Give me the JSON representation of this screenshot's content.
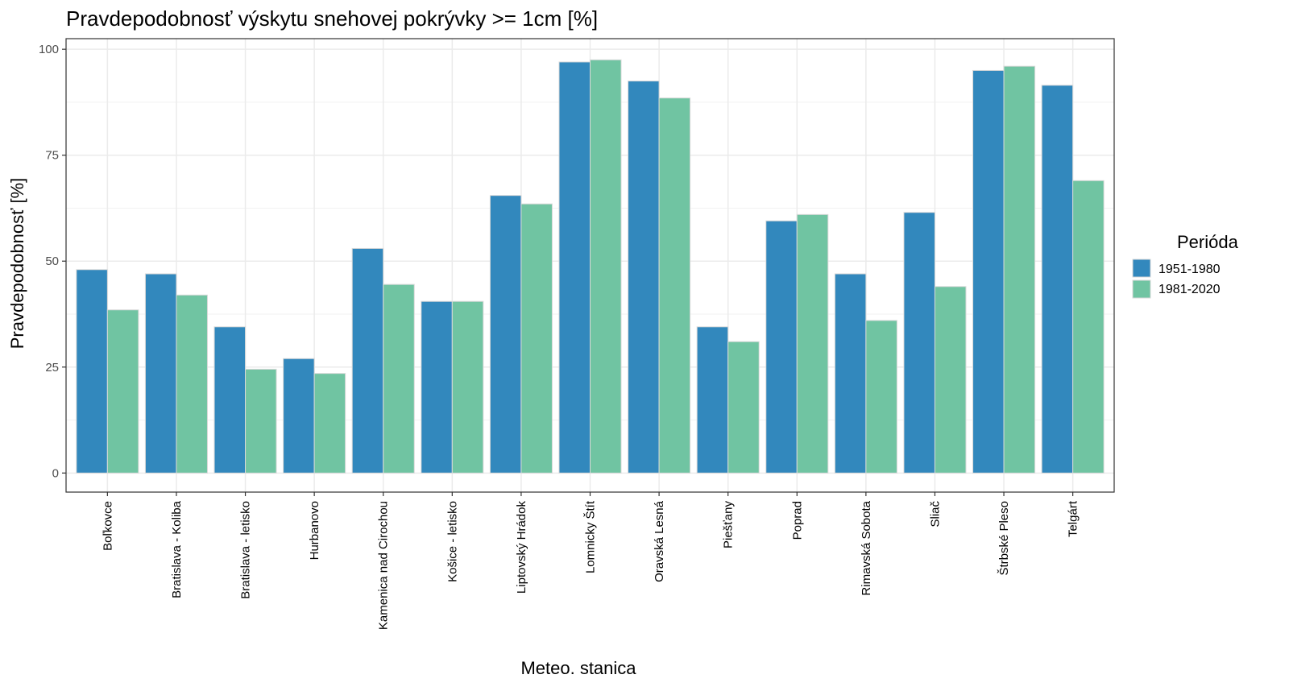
{
  "chart_data": {
    "type": "bar",
    "title": "Pravdepodobnosť výskytu snehovej pokrývky >= 1cm [%]",
    "xlabel": "Meteo. stanica",
    "ylabel": "Pravdepodobnosť [%]",
    "ylim": [
      -4.5,
      102.5
    ],
    "yticks": [
      0,
      25,
      50,
      75,
      100
    ],
    "ytick_labels": [
      "0",
      "25",
      "50",
      "75",
      "100"
    ],
    "grid": true,
    "legend_title": "Perióda",
    "legend_position": "right",
    "categories": [
      "Boľkovce",
      "Bratislava - Koliba",
      "Bratislava - letisko",
      "Hurbanovo",
      "Kamenica nad Cirochou",
      "Košice - letisko",
      "Liptovský Hrádok",
      "Lomnicky Štít",
      "Oravská Lesná",
      "Piešťany",
      "Poprad",
      "Rimavská Sobota",
      "Sliač",
      "Štrbské Pleso",
      "Telgárt"
    ],
    "series": [
      {
        "name": "1951-1980",
        "color": "#3288bd",
        "values": [
          48,
          47,
          34.5,
          27,
          53,
          40.5,
          65.5,
          97,
          92.5,
          34.5,
          59.5,
          47,
          61.5,
          95,
          91.5
        ]
      },
      {
        "name": "1981-2020",
        "color": "#70c4a2",
        "values": [
          38.5,
          42,
          24.5,
          23.5,
          44.5,
          40.5,
          63.5,
          97.5,
          88.5,
          31,
          61,
          36,
          44,
          96,
          69
        ]
      }
    ]
  }
}
